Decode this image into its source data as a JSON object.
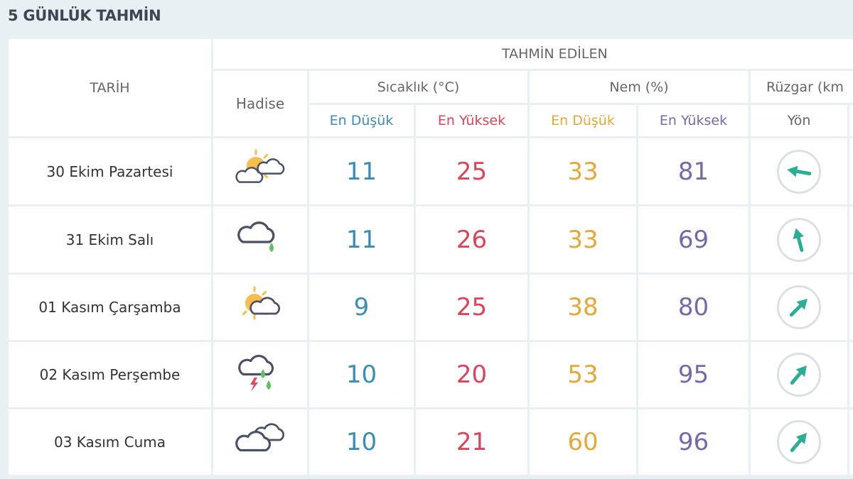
{
  "title": "5 GÜNLÜK TAHMİN",
  "header": {
    "tarih": "TARİH",
    "tahmin": "TAHMİN EDİLEN",
    "hadise": "Hadise",
    "sicaklik": "Sıcaklık (°C)",
    "nem": "Nem (%)",
    "ruzgar": "Rüzgar (km",
    "en_dusuk": "En Düşük",
    "en_yuksek": "En Yüksek",
    "yon": "Yön"
  },
  "colors": {
    "min_temp": "#3a8db5",
    "max_temp": "#df4359",
    "min_hum": "#e6a836",
    "max_hum": "#7968a8",
    "arrow": "#2aae94"
  },
  "rows": [
    {
      "date": "30 Ekim Pazartesi",
      "icon": "partly-cloudy-two-clouds",
      "t_min": "11",
      "t_max": "25",
      "h_min": "33",
      "h_max": "81",
      "wind_dir_deg": 280
    },
    {
      "date": "31 Ekim Salı",
      "icon": "cloud-light-rain",
      "t_min": "11",
      "t_max": "26",
      "h_min": "33",
      "h_max": "69",
      "wind_dir_deg": 345
    },
    {
      "date": "01 Kasım Çarşamba",
      "icon": "partly-cloudy",
      "t_min": "9",
      "t_max": "25",
      "h_min": "38",
      "h_max": "80",
      "wind_dir_deg": 45
    },
    {
      "date": "02 Kasım Perşembe",
      "icon": "thunderstorm-rain",
      "t_min": "10",
      "t_max": "20",
      "h_min": "53",
      "h_max": "95",
      "wind_dir_deg": 40
    },
    {
      "date": "03 Kasım Cuma",
      "icon": "cloudy",
      "t_min": "10",
      "t_max": "21",
      "h_min": "60",
      "h_max": "96",
      "wind_dir_deg": 40
    }
  ]
}
